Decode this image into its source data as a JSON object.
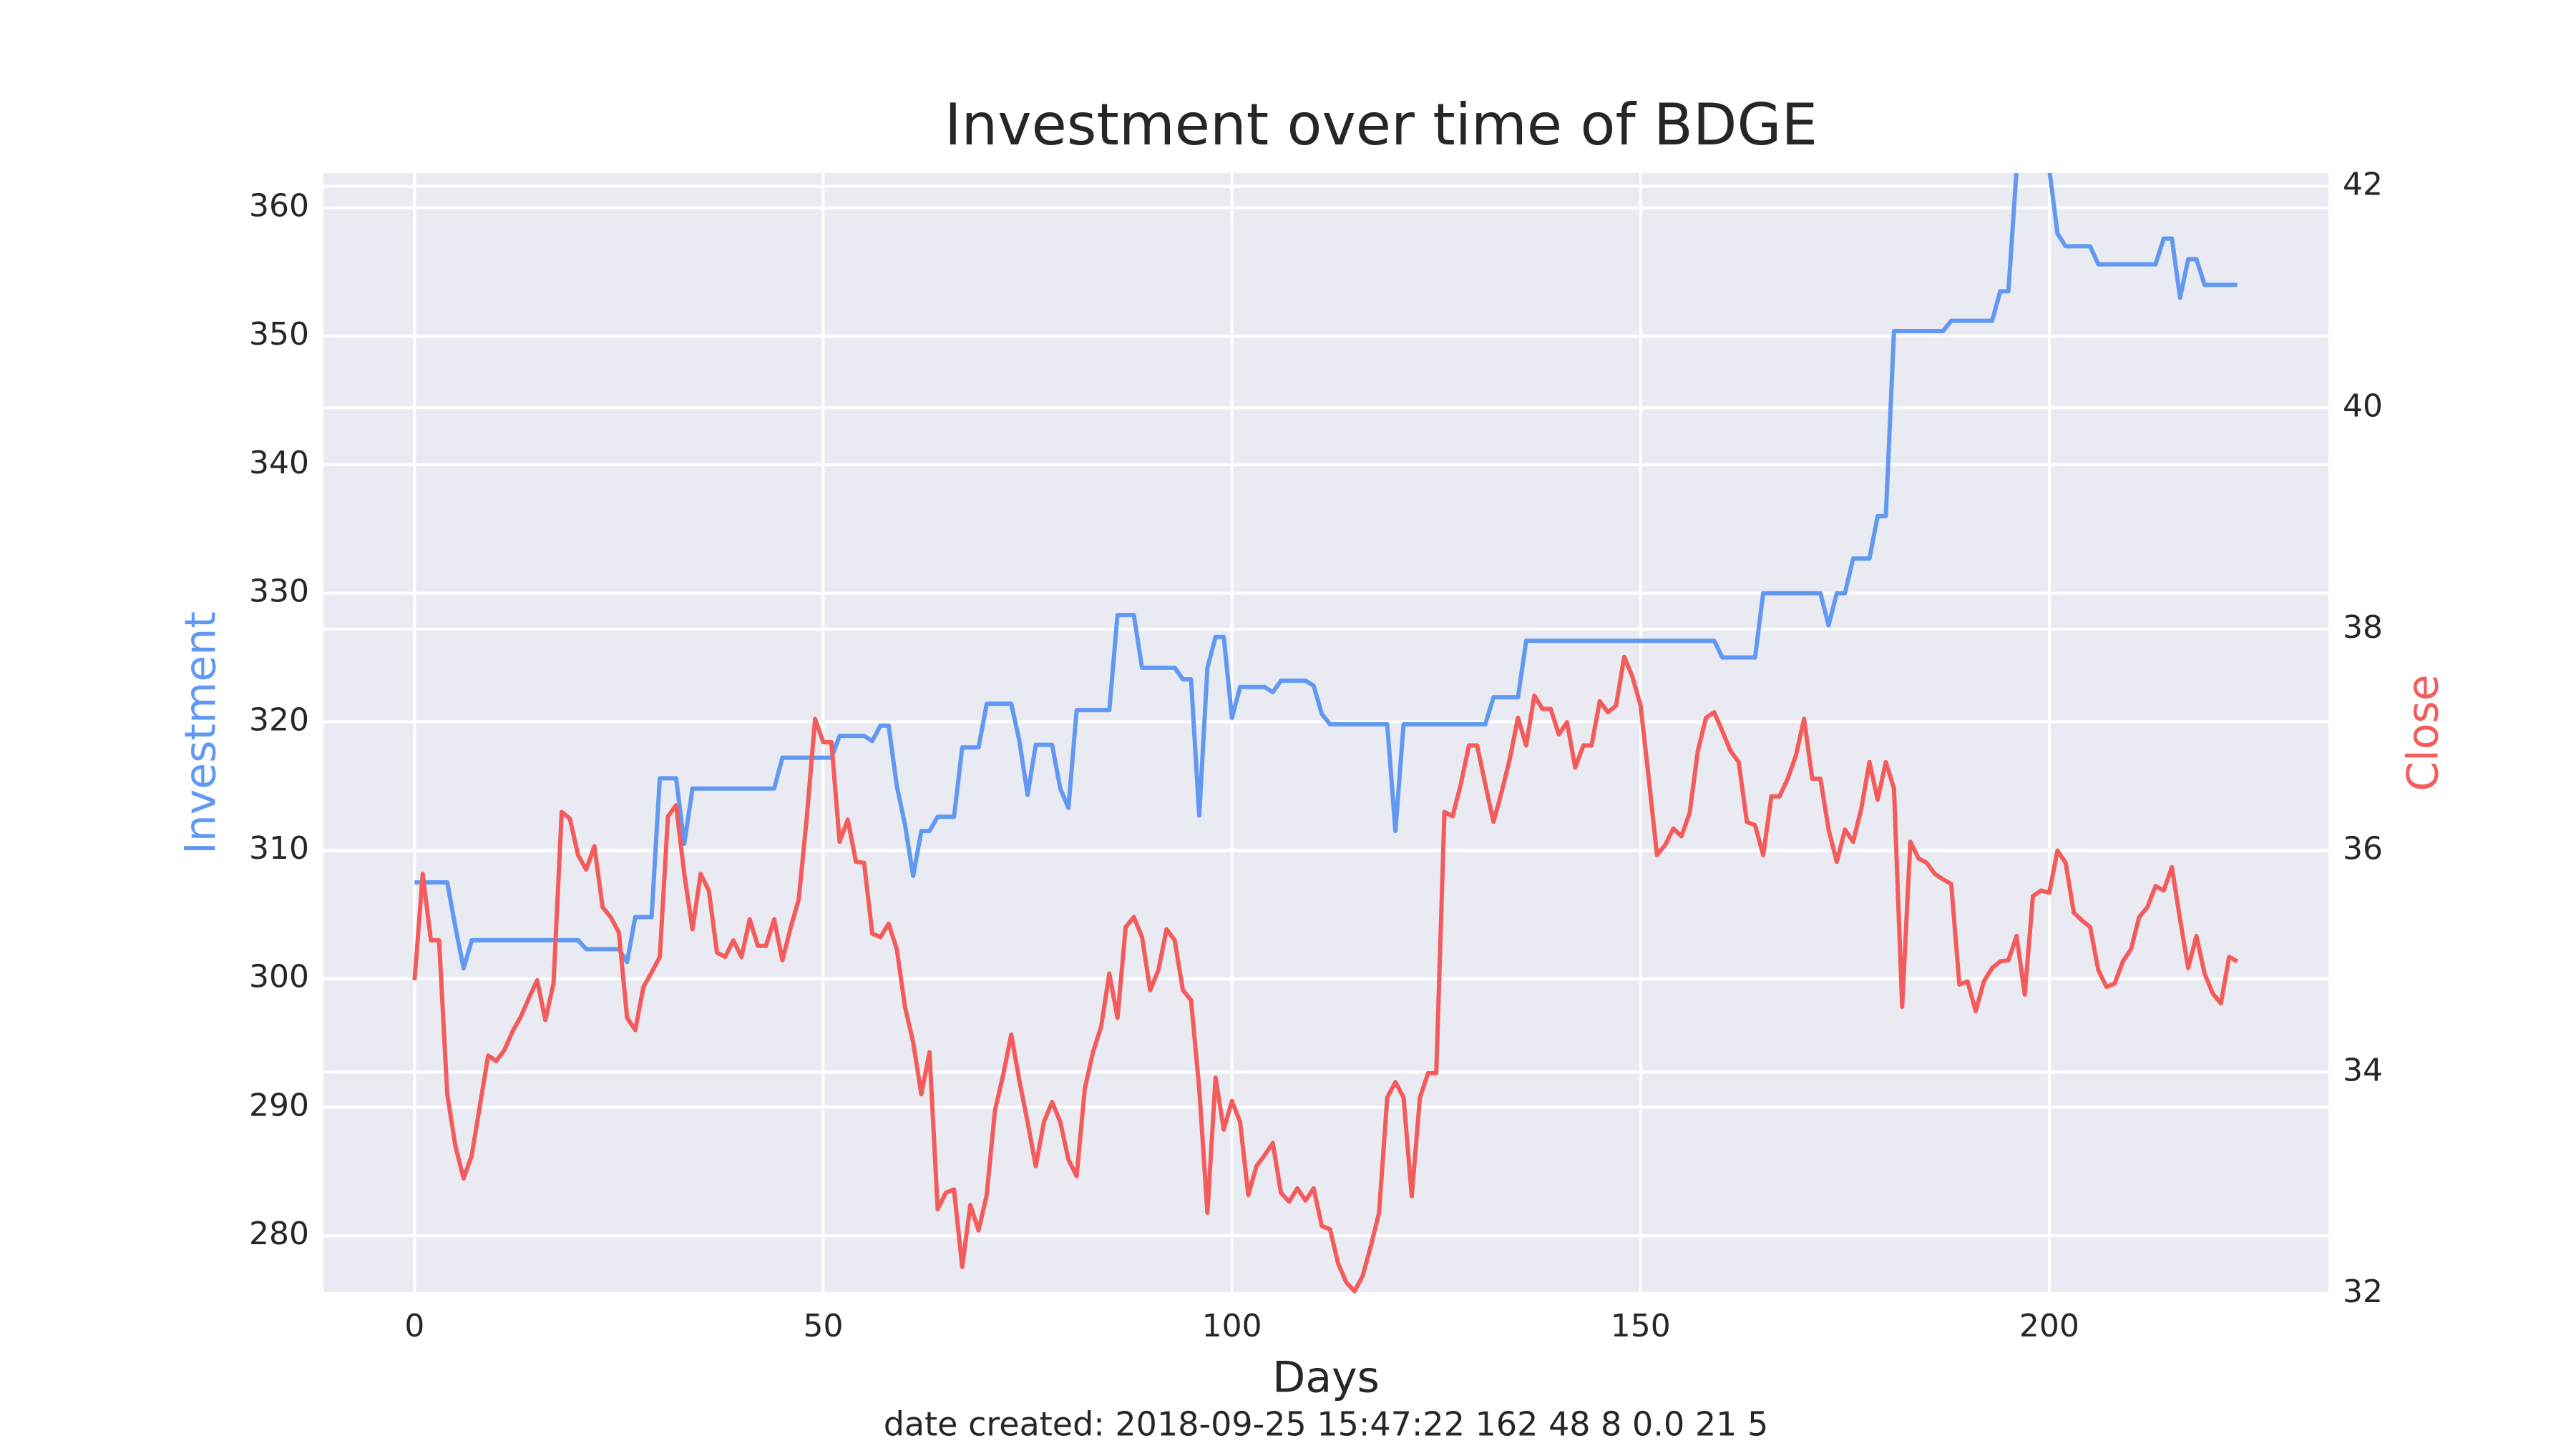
{
  "chart_data": {
    "type": "line",
    "title": "Investment over time of BDGE",
    "xlabel": "Days",
    "ylabel": "Investment",
    "y2label": "Close",
    "footer": "date created: 2018-09-25 15:47:22 162 48 8 0.0 21 5",
    "x": [
      0,
      1,
      2,
      3,
      4,
      5,
      6,
      7,
      8,
      9,
      10,
      11,
      12,
      13,
      14,
      15,
      16,
      17,
      18,
      19,
      20,
      21,
      22,
      23,
      24,
      25,
      26,
      27,
      28,
      29,
      30,
      31,
      32,
      33,
      34,
      35,
      36,
      37,
      38,
      39,
      40,
      41,
      42,
      43,
      44,
      45,
      46,
      47,
      48,
      49,
      50,
      51,
      52,
      53,
      54,
      55,
      56,
      57,
      58,
      59,
      60,
      61,
      62,
      63,
      64,
      65,
      66,
      67,
      68,
      69,
      70,
      71,
      72,
      73,
      74,
      75,
      76,
      77,
      78,
      79,
      80,
      81,
      82,
      83,
      84,
      85,
      86,
      87,
      88,
      89,
      90,
      91,
      92,
      93,
      94,
      95,
      96,
      97,
      98,
      99,
      100,
      101,
      102,
      103,
      104,
      105,
      106,
      107,
      108,
      109,
      110,
      111,
      112,
      113,
      114,
      115,
      116,
      117,
      118,
      119,
      120,
      121,
      122,
      123,
      124,
      125,
      126,
      127,
      128,
      129,
      130,
      131,
      132,
      133,
      134,
      135,
      136,
      137,
      138,
      139,
      140,
      141,
      142,
      143,
      144,
      145,
      146,
      147,
      148,
      149,
      150,
      151,
      152,
      153,
      154,
      155,
      156,
      157,
      158,
      159,
      160,
      161,
      162,
      163,
      164,
      165,
      166,
      167,
      168,
      169,
      170,
      171,
      172,
      173,
      174,
      175,
      176,
      177,
      178,
      179,
      180,
      181,
      182,
      183,
      184,
      185,
      186,
      187,
      188,
      189,
      190,
      191,
      192,
      193,
      194,
      195,
      196,
      197,
      198,
      199,
      200,
      201,
      202,
      203,
      204,
      205,
      206,
      207,
      208,
      209,
      210,
      211,
      212,
      213,
      214,
      215,
      216,
      217,
      218,
      219,
      220,
      221,
      222,
      223
    ],
    "series": [
      {
        "color": "#6199f2",
        "values": [
          307.5,
          307.5,
          307.5,
          307.5,
          307.5,
          304,
          300.8,
          303,
          303,
          303,
          303,
          303,
          303,
          303,
          303,
          303,
          303,
          303,
          303,
          303,
          303,
          302.3,
          302.3,
          302.3,
          302.3,
          302.3,
          301.3,
          304.8,
          304.8,
          304.8,
          315.6,
          315.6,
          315.6,
          310.5,
          314.8,
          314.8,
          314.8,
          314.8,
          314.8,
          314.8,
          314.8,
          314.8,
          314.8,
          314.8,
          314.8,
          317.2,
          317.2,
          317.2,
          317.2,
          317.2,
          317.2,
          317.2,
          318.9,
          318.9,
          318.9,
          318.9,
          318.5,
          319.7,
          319.7,
          315,
          312,
          308,
          311.5,
          311.5,
          312.6,
          312.6,
          312.6,
          318,
          318,
          318,
          321.4,
          321.4,
          321.4,
          321.4,
          318.5,
          314.3,
          318.2,
          318.2,
          318.2,
          314.8,
          313.3,
          320.9,
          320.9,
          320.9,
          320.9,
          320.9,
          328.3,
          328.3,
          328.3,
          324.2,
          324.2,
          324.2,
          324.2,
          324.2,
          323.3,
          323.3,
          312.7,
          324.2,
          326.6,
          326.6,
          320.3,
          322.7,
          322.7,
          322.7,
          322.7,
          322.3,
          323.2,
          323.2,
          323.2,
          323.2,
          322.8,
          320.6,
          319.8,
          319.8,
          319.8,
          319.8,
          319.8,
          319.8,
          319.8,
          319.8,
          311.5,
          319.8,
          319.8,
          319.8,
          319.8,
          319.8,
          319.8,
          319.8,
          319.8,
          319.8,
          319.8,
          319.8,
          321.9,
          321.9,
          321.9,
          321.9,
          326.3,
          326.3,
          326.3,
          326.3,
          326.3,
          326.3,
          326.3,
          326.3,
          326.3,
          326.3,
          326.3,
          326.3,
          326.3,
          326.3,
          326.3,
          326.3,
          326.3,
          326.3,
          326.3,
          326.3,
          326.3,
          326.3,
          326.3,
          326.3,
          325,
          325,
          325,
          325,
          325,
          330,
          330,
          330,
          330,
          330,
          330,
          330,
          330,
          327.5,
          330,
          330,
          332.7,
          332.7,
          332.7,
          336,
          336,
          350.4,
          350.4,
          350.4,
          350.4,
          350.4,
          350.4,
          350.4,
          351.2,
          351.2,
          351.2,
          351.2,
          351.2,
          351.2,
          353.5,
          353.5,
          363,
          363,
          363,
          363,
          363,
          358,
          357,
          357,
          357,
          357,
          355.6,
          355.6,
          355.6,
          355.6,
          355.6,
          355.6,
          355.6,
          355.6,
          357.6,
          357.6,
          353,
          356,
          356,
          354,
          354,
          354,
          354,
          354
        ]
      },
      {
        "color": "#f45b5b",
        "axis": "y2",
        "values": [
          34.83,
          35.79,
          35.19,
          35.19,
          33.8,
          33.33,
          33.04,
          33.25,
          33.7,
          34.15,
          34.1,
          34.2,
          34.37,
          34.5,
          34.67,
          34.83,
          34.47,
          34.8,
          36.35,
          36.29,
          35.96,
          35.83,
          36.04,
          35.49,
          35.4,
          35.26,
          34.49,
          34.38,
          34.77,
          34.9,
          35.04,
          36.31,
          36.41,
          35.79,
          35.29,
          35.79,
          35.64,
          35.08,
          35.04,
          35.19,
          35.04,
          35.38,
          35.14,
          35.14,
          35.38,
          35.01,
          35.3,
          35.56,
          36.31,
          37.19,
          36.98,
          36.98,
          36.08,
          36.28,
          35.9,
          35.89,
          35.25,
          35.22,
          35.34,
          35.11,
          34.59,
          34.27,
          33.8,
          34.18,
          32.76,
          32.91,
          32.94,
          32.24,
          32.8,
          32.57,
          32.89,
          33.65,
          33.97,
          34.34,
          33.92,
          33.55,
          33.15,
          33.55,
          33.73,
          33.55,
          33.21,
          33.06,
          33.85,
          34.18,
          34.41,
          34.89,
          34.49,
          35.31,
          35.4,
          35.22,
          34.74,
          34.92,
          35.29,
          35.19,
          34.74,
          34.65,
          33.85,
          32.73,
          33.95,
          33.48,
          33.74,
          33.55,
          32.89,
          33.15,
          33.25,
          33.36,
          32.91,
          32.83,
          32.95,
          32.84,
          32.95,
          32.61,
          32.58,
          32.27,
          32.1,
          32.02,
          32.16,
          32.43,
          32.73,
          33.77,
          33.91,
          33.77,
          32.88,
          33.77,
          33.99,
          33.99,
          36.35,
          36.31,
          36.6,
          36.95,
          36.95,
          36.6,
          36.26,
          36.53,
          36.83,
          37.2,
          36.95,
          37.4,
          37.28,
          37.28,
          37.05,
          37.16,
          36.75,
          36.95,
          36.95,
          37.35,
          37.25,
          37.31,
          37.75,
          37.57,
          37.31,
          36.65,
          35.96,
          36.05,
          36.2,
          36.13,
          36.34,
          36.9,
          37.2,
          37.25,
          37.08,
          36.9,
          36.8,
          36.26,
          36.23,
          35.96,
          36.49,
          36.49,
          36.65,
          36.86,
          37.19,
          36.65,
          36.65,
          36.19,
          35.9,
          36.19,
          36.08,
          36.38,
          36.8,
          36.46,
          36.8,
          36.56,
          34.59,
          36.08,
          35.93,
          35.89,
          35.79,
          35.74,
          35.7,
          34.79,
          34.82,
          34.55,
          34.82,
          34.94,
          35.0,
          35.01,
          35.23,
          34.7,
          35.59,
          35.64,
          35.62,
          36.0,
          35.89,
          35.44,
          35.37,
          35.31,
          34.92,
          34.77,
          34.8,
          35.0,
          35.11,
          35.4,
          35.49,
          35.68,
          35.64,
          35.85,
          35.38,
          34.94,
          35.23,
          34.89,
          34.71,
          34.62,
          35.04,
          35.0
        ]
      }
    ],
    "xlim": [
      -11.15,
      234.15
    ],
    "ylim": [
      275.5,
      362.7
    ],
    "y2lim": [
      32,
      42.12
    ],
    "xticks": [
      0,
      50,
      100,
      150,
      200
    ],
    "yticks": [
      280,
      290,
      300,
      310,
      320,
      330,
      340,
      350,
      360
    ],
    "y2ticks": [
      32,
      34,
      36,
      38,
      40,
      42
    ],
    "grid": true
  }
}
